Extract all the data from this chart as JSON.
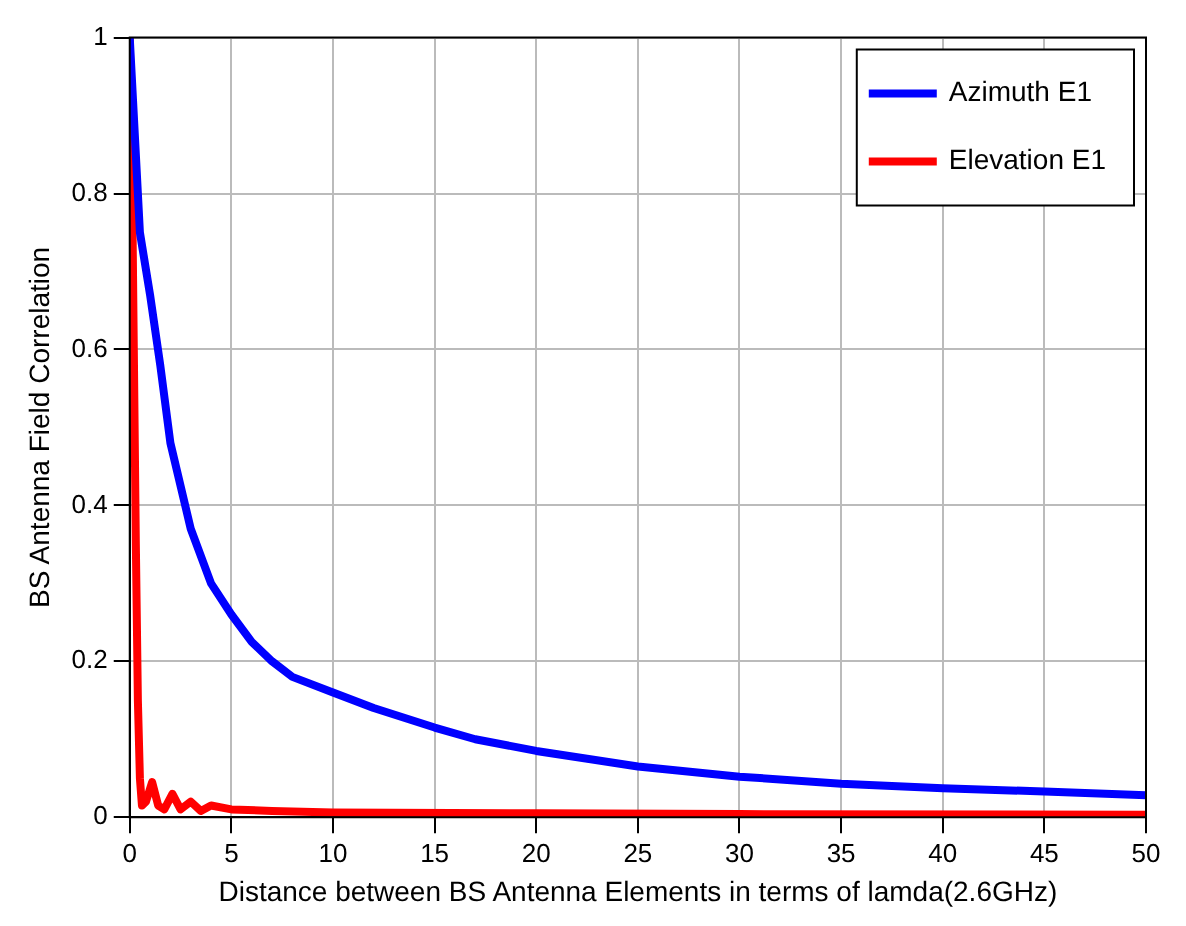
{
  "chart_data": {
    "type": "line",
    "xlabel": "Distance between BS Antenna Elements in terms of lamda(2.6GHz)",
    "ylabel": "BS Antenna Field Correlation",
    "xlim": [
      0,
      50
    ],
    "xticks": [
      0,
      5,
      10,
      15,
      20,
      25,
      30,
      35,
      40,
      45,
      50
    ],
    "ylim": [
      0,
      1
    ],
    "yticks": [
      0,
      0.2,
      0.4,
      0.6,
      0.8,
      1
    ],
    "grid": true,
    "legend": "top right",
    "marker": "none",
    "line_style": "solid",
    "series": [
      {
        "name": "Azimuth E1",
        "color": "#0000ff",
        "x": [
          0,
          0.2,
          0.5,
          1,
          1.5,
          2,
          3,
          4,
          5,
          6,
          7,
          8,
          10,
          12,
          15,
          17,
          20,
          25,
          30,
          35,
          40,
          45,
          50
        ],
        "values": [
          1,
          0.9,
          0.75,
          0.67,
          0.58,
          0.48,
          0.37,
          0.3,
          0.26,
          0.225,
          0.2,
          0.18,
          0.16,
          0.14,
          0.115,
          0.1,
          0.085,
          0.065,
          0.052,
          0.043,
          0.037,
          0.033,
          0.028
        ]
      },
      {
        "name": "Elevation E1",
        "color": "#ff0000",
        "x": [
          0,
          0.1,
          0.2,
          0.3,
          0.4,
          0.5,
          0.6,
          0.8,
          1.1,
          1.4,
          1.7,
          2.1,
          2.5,
          3,
          3.5,
          4,
          5,
          7,
          10,
          20,
          30,
          50
        ],
        "values": [
          1,
          0.85,
          0.6,
          0.35,
          0.15,
          0.05,
          0.015,
          0.02,
          0.045,
          0.015,
          0.01,
          0.03,
          0.01,
          0.02,
          0.008,
          0.015,
          0.01,
          0.008,
          0.006,
          0.005,
          0.004,
          0.003
        ]
      }
    ]
  }
}
